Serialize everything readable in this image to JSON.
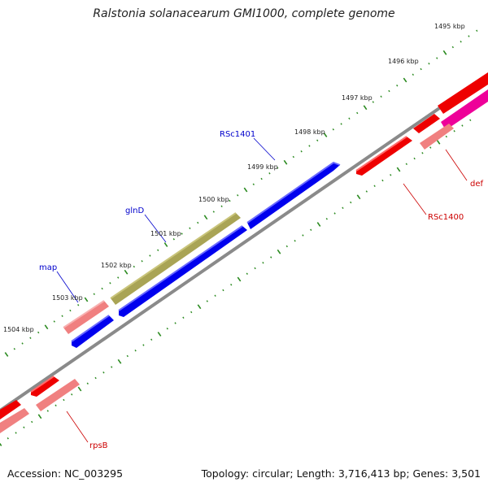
{
  "title": "Ralstonia solanacearum GMI1000, complete genome",
  "accession": "Accession: NC_003295",
  "topology": "Topology: circular; Length: 3,716,413 bp; Genes: 3,501",
  "colors": {
    "backbone": "#8a8a8a",
    "tick": "#2a8a1f",
    "blue_gene": "#0000ee",
    "red_gene": "#ee0000",
    "pink_gene": "#f08080",
    "olive_gene": "#a9a455",
    "magenta_gene": "#ee0099",
    "label_blue": "#0000cc",
    "label_red": "#cc0000"
  },
  "ticks": [
    "1495 kbp",
    "1496 kbp",
    "1497 kbp",
    "1498 kbp",
    "1499 kbp",
    "1500 kbp",
    "1501 kbp",
    "1502 kbp",
    "1503 kbp",
    "1504 kbp"
  ],
  "genes": [
    {
      "id": "RSc1401",
      "label": "RSc1401",
      "strand": "plus",
      "color": "blue"
    },
    {
      "id": "glnD",
      "label": "glnD",
      "strand": "plus",
      "color": "olive"
    },
    {
      "id": "glnD-comp",
      "label": "",
      "strand": "plus",
      "color": "blue"
    },
    {
      "id": "map",
      "label": "map",
      "strand": "plus",
      "color": "pink"
    },
    {
      "id": "map-comp",
      "label": "",
      "strand": "plus",
      "color": "blue"
    },
    {
      "id": "RSc1400",
      "label": "RSc1400",
      "strand": "minus",
      "color": "red"
    },
    {
      "id": "def",
      "label": "def",
      "strand": "minus",
      "color": "magenta"
    },
    {
      "id": "rpsB",
      "label": "rpsB",
      "strand": "minus",
      "color": "red"
    }
  ]
}
